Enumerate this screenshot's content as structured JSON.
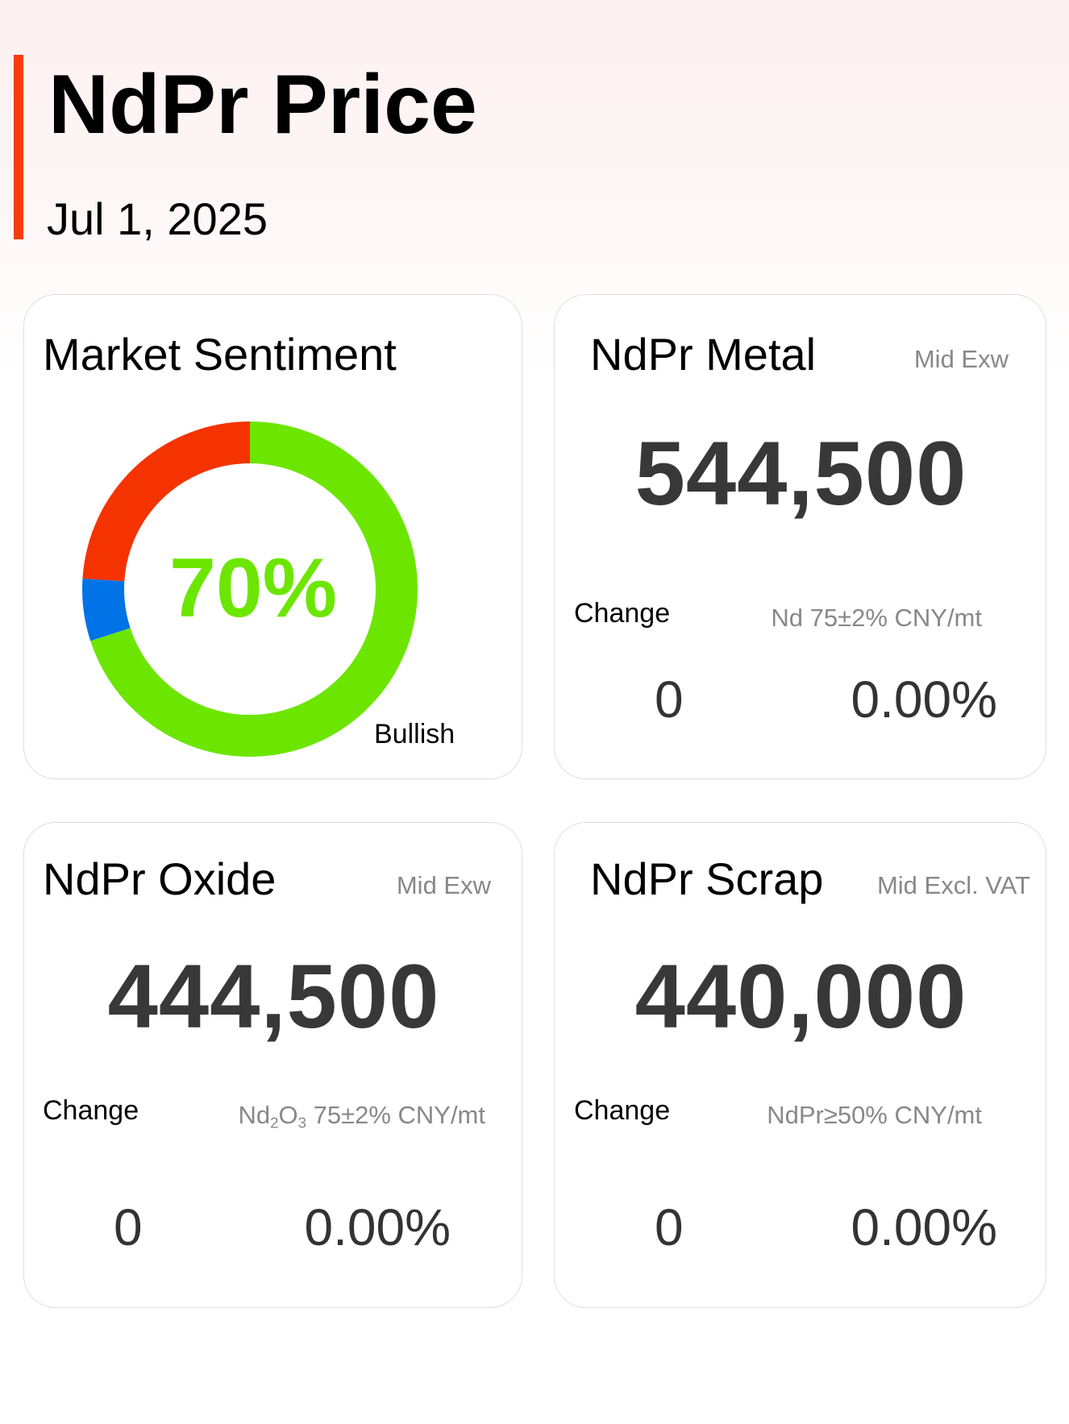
{
  "header": {
    "title": "NdPr Price",
    "date": "Jul 1, 2025"
  },
  "sentiment": {
    "title": "Market Sentiment",
    "center_label": "70%",
    "label": "Bullish",
    "chart_data": {
      "type": "pie",
      "values": [
        70,
        6,
        24
      ],
      "colors": [
        "#6ce600",
        "#0073e6",
        "#f53300"
      ]
    }
  },
  "metal": {
    "title": "NdPr Metal",
    "unit": "Mid  Exw",
    "price": "544,500",
    "change_label": "Change",
    "spec": "Nd 75±2% CNY/mt",
    "change": "0",
    "change_pct": "0.00%"
  },
  "oxide": {
    "title": "NdPr Oxide",
    "unit": "Mid  Exw",
    "price": "444,500",
    "change_label": "Change",
    "spec_prefix": "Nd",
    "spec_sub1": "2",
    "spec_mid": "O",
    "spec_sub2": "3",
    "spec_suffix": " 75±2% CNY/mt",
    "change": "0",
    "change_pct": "0.00%"
  },
  "scrap": {
    "title": "NdPr Scrap",
    "unit": "Mid  Excl. VAT",
    "price": "440,000",
    "change_label": "Change",
    "spec": "NdPr≥50% CNY/mt",
    "change": "0",
    "change_pct": "0.00%"
  }
}
